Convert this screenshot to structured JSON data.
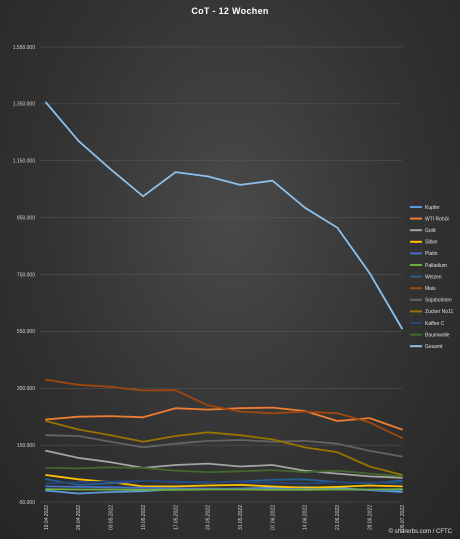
{
  "chart_data": {
    "type": "line",
    "title": "CoT - 12 Wochen",
    "xlabel": "",
    "ylabel": "",
    "ylim": [
      -50000,
      1550000
    ],
    "yticks": [
      -50000,
      150000,
      350000,
      550000,
      750000,
      950000,
      1150000,
      1350000,
      1550000
    ],
    "ytick_labels": [
      "-50.000",
      "150.000",
      "350.000",
      "550.000",
      "750.000",
      "950.000",
      "1.150.000",
      "1.350.000",
      "1.550.000"
    ],
    "x": [
      "19.04.2022",
      "26.04.2022",
      "03.05.2022",
      "10.05.2022",
      "17.05.2022",
      "24.05.2022",
      "31.05.2022",
      "07.06.2022",
      "14.06.2022",
      "21.06.2022",
      "28.06.2022",
      "05.07.2022"
    ],
    "grid": true,
    "legend_position": "right",
    "series": [
      {
        "name": "Kupfer",
        "color": "#5b9bd5",
        "values": [
          -10000,
          -20000,
          -15000,
          -12000,
          -5000,
          -5000,
          -3000,
          0,
          2000,
          0,
          -8000,
          -15000
        ]
      },
      {
        "name": "WTI Rohöl",
        "color": "#ed7d31",
        "values": [
          240000,
          250000,
          252000,
          248000,
          280000,
          275000,
          280000,
          282000,
          270000,
          235000,
          245000,
          205000
        ]
      },
      {
        "name": "Gold",
        "color": "#a5a5a5",
        "values": [
          130000,
          105000,
          90000,
          70000,
          80000,
          85000,
          75000,
          80000,
          60000,
          50000,
          40000,
          35000
        ]
      },
      {
        "name": "Silber",
        "color": "#ffc000",
        "values": [
          45000,
          30000,
          20000,
          5000,
          5000,
          8000,
          10000,
          5000,
          0,
          3000,
          8000,
          5000
        ]
      },
      {
        "name": "Platin",
        "color": "#4472c4",
        "values": [
          5000,
          3000,
          2000,
          0,
          -2000,
          -3000,
          -4000,
          -5000,
          -5000,
          -6000,
          -7000,
          -8000
        ]
      },
      {
        "name": "Palladium",
        "color": "#70ad47",
        "values": [
          -5000,
          -6000,
          -6000,
          -7000,
          -7000,
          -6000,
          -6000,
          -7000,
          -7000,
          -6000,
          -6000,
          -5000
        ]
      },
      {
        "name": "Weizen",
        "color": "#255e91",
        "values": [
          30000,
          10000,
          15000,
          25000,
          20000,
          18000,
          22000,
          28000,
          30000,
          20000,
          15000,
          25000
        ]
      },
      {
        "name": "Mais",
        "color": "#9e480e",
        "values": [
          380000,
          362000,
          355000,
          342000,
          343000,
          290000,
          268000,
          262000,
          268000,
          262000,
          230000,
          175000
        ]
      },
      {
        "name": "Sojabohnen",
        "color": "#636363",
        "values": [
          185000,
          182000,
          162000,
          142000,
          155000,
          165000,
          168000,
          162000,
          165000,
          155000,
          130000,
          110000
        ]
      },
      {
        "name": "Zucker No11",
        "color": "#997300",
        "values": [
          235000,
          205000,
          185000,
          162000,
          182000,
          195000,
          185000,
          170000,
          142000,
          125000,
          75000,
          45000
        ]
      },
      {
        "name": "Kaffee C",
        "color": "#264478",
        "values": [
          15000,
          20000,
          22000,
          25000,
          22000,
          20000,
          20000,
          18000,
          15000,
          20000,
          18000,
          15000
        ]
      },
      {
        "name": "Baumwolle",
        "color": "#43682b",
        "values": [
          70000,
          68000,
          72000,
          70000,
          60000,
          55000,
          58000,
          62000,
          55000,
          60000,
          50000,
          40000
        ]
      },
      {
        "name": "Gesamt",
        "color": "#8cc0ea",
        "values": [
          1355000,
          1220000,
          1120000,
          1025000,
          1110000,
          1095000,
          1065000,
          1080000,
          985000,
          915000,
          755000,
          560000
        ]
      }
    ]
  },
  "footer": {
    "credit": "© sharerbs.com / CFTC"
  }
}
